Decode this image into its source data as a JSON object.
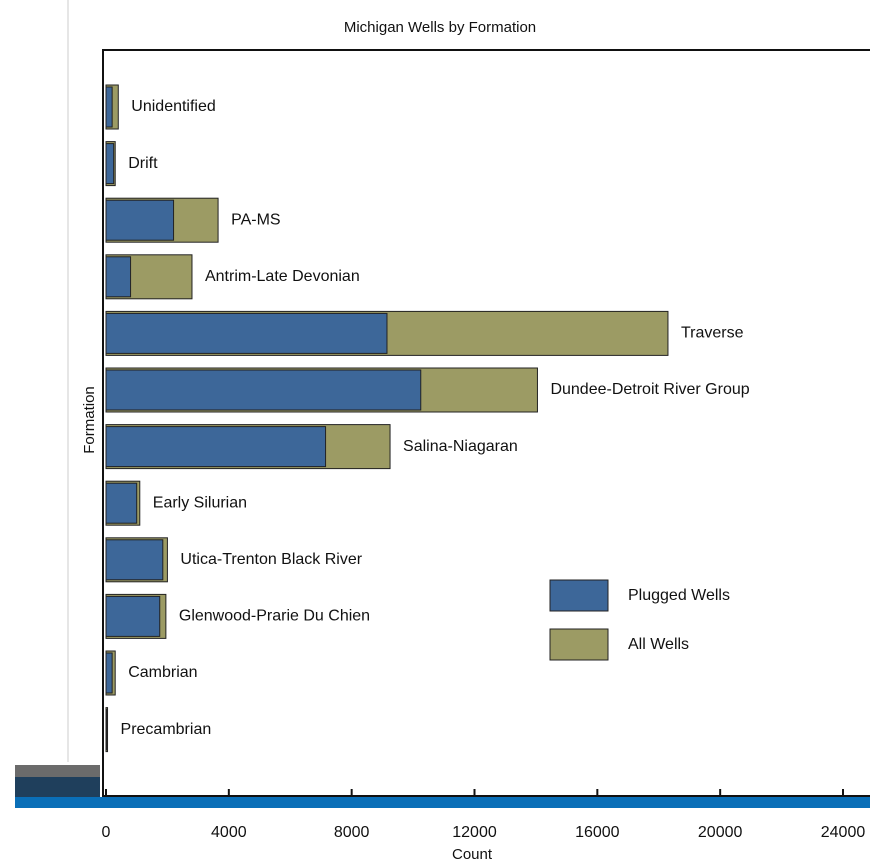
{
  "chart_data": {
    "type": "bar",
    "orientation": "horizontal",
    "title": "Michigan Wells by Formation",
    "x_label": "Count",
    "y_label": "Formation",
    "categories": [
      "Unidentified",
      "Drift",
      "PA-MS",
      "Antrim-Late Devonian",
      "Traverse",
      "Dundee-Detroit River Group",
      "Salina-Niagaran",
      "Early Silurian",
      "Utica-Trenton Black River",
      "Glenwood-Prarie Du Chien",
      "Cambrian",
      "Precambrian"
    ],
    "series": [
      {
        "name": "All Wells",
        "color": "#9c9b64",
        "values": [
          400,
          300,
          3650,
          2800,
          18300,
          14050,
          9250,
          1100,
          2000,
          1950,
          300,
          50
        ]
      },
      {
        "name": "Plugged Wells",
        "color": "#3d6799",
        "values": [
          200,
          250,
          2200,
          800,
          9150,
          10250,
          7150,
          1000,
          1850,
          1750,
          200,
          30
        ]
      }
    ],
    "xlim": [
      0,
      24000
    ],
    "xticks": [
      0,
      4000,
      8000,
      12000,
      16000,
      20000,
      24000
    ],
    "legend": "lower right"
  }
}
